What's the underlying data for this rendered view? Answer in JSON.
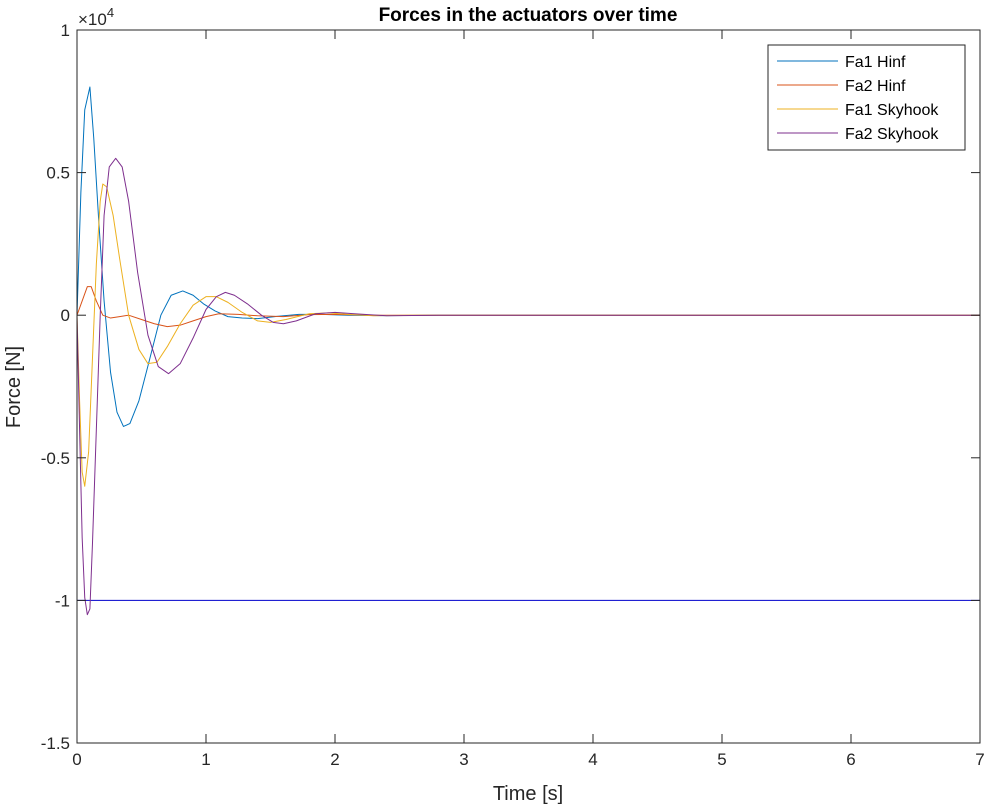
{
  "chart_data": {
    "type": "line",
    "title": "Forces in the actuators over time",
    "xlabel": "Time [s]",
    "ylabel": "Force [N]",
    "y_multiplier_prefix": "×10",
    "y_multiplier_exponent": "4",
    "xlim": [
      0,
      7
    ],
    "ylim": [
      -15000,
      10000
    ],
    "x_ticks": [
      0,
      1,
      2,
      3,
      4,
      5,
      6,
      7
    ],
    "x_tick_labels": [
      "0",
      "1",
      "2",
      "3",
      "4",
      "5",
      "6",
      "7"
    ],
    "y_ticks": [
      -15000,
      -10000,
      -5000,
      0,
      5000,
      10000
    ],
    "y_tick_labels": [
      "-1.5",
      "-1",
      "-0.5",
      "0",
      "0.5",
      "1"
    ],
    "grid": false,
    "legend_position": "top-right",
    "series": [
      {
        "name": "Fa1 Hinf",
        "color": "#0072BD",
        "points": [
          [
            0,
            0
          ],
          [
            0.03,
            4300
          ],
          [
            0.06,
            7200
          ],
          [
            0.1,
            8000
          ],
          [
            0.13,
            6200
          ],
          [
            0.17,
            3200
          ],
          [
            0.21,
            500
          ],
          [
            0.26,
            -2000
          ],
          [
            0.31,
            -3400
          ],
          [
            0.36,
            -3900
          ],
          [
            0.41,
            -3800
          ],
          [
            0.48,
            -3000
          ],
          [
            0.56,
            -1600
          ],
          [
            0.65,
            0
          ],
          [
            0.73,
            700
          ],
          [
            0.82,
            850
          ],
          [
            0.9,
            700
          ],
          [
            0.98,
            400
          ],
          [
            1.07,
            150
          ],
          [
            1.17,
            -50
          ],
          [
            1.28,
            -100
          ],
          [
            1.4,
            -120
          ],
          [
            1.55,
            -40
          ],
          [
            1.72,
            30
          ],
          [
            1.9,
            30
          ],
          [
            2.1,
            0
          ],
          [
            2.4,
            -15
          ],
          [
            2.8,
            0
          ],
          [
            3.5,
            0
          ],
          [
            7,
            0
          ]
        ]
      },
      {
        "name": "Fa2 Hinf",
        "color": "#D95319",
        "points": [
          [
            0,
            0
          ],
          [
            0.04,
            500
          ],
          [
            0.08,
            1000
          ],
          [
            0.11,
            1000
          ],
          [
            0.15,
            500
          ],
          [
            0.2,
            0
          ],
          [
            0.26,
            -100
          ],
          [
            0.33,
            -50
          ],
          [
            0.4,
            0
          ],
          [
            0.5,
            -150
          ],
          [
            0.6,
            -300
          ],
          [
            0.7,
            -400
          ],
          [
            0.8,
            -350
          ],
          [
            0.9,
            -200
          ],
          [
            1.0,
            -50
          ],
          [
            1.1,
            50
          ],
          [
            1.25,
            30
          ],
          [
            1.4,
            -20
          ],
          [
            1.6,
            -50
          ],
          [
            1.8,
            20
          ],
          [
            2.0,
            30
          ],
          [
            2.3,
            0
          ],
          [
            3,
            0
          ],
          [
            7,
            0
          ]
        ]
      },
      {
        "name": "Fa1 Skyhook",
        "color": "#EDB120",
        "points": [
          [
            0,
            0
          ],
          [
            0.02,
            -3000
          ],
          [
            0.04,
            -5500
          ],
          [
            0.06,
            -6000
          ],
          [
            0.09,
            -4800
          ],
          [
            0.12,
            -1500
          ],
          [
            0.15,
            1800
          ],
          [
            0.18,
            4000
          ],
          [
            0.2,
            4600
          ],
          [
            0.23,
            4500
          ],
          [
            0.28,
            3500
          ],
          [
            0.33,
            2000
          ],
          [
            0.4,
            0
          ],
          [
            0.48,
            -1200
          ],
          [
            0.55,
            -1700
          ],
          [
            0.62,
            -1650
          ],
          [
            0.7,
            -1100
          ],
          [
            0.8,
            -300
          ],
          [
            0.9,
            350
          ],
          [
            1.0,
            650
          ],
          [
            1.08,
            650
          ],
          [
            1.17,
            450
          ],
          [
            1.28,
            100
          ],
          [
            1.4,
            -200
          ],
          [
            1.5,
            -250
          ],
          [
            1.62,
            -150
          ],
          [
            1.8,
            50
          ],
          [
            1.95,
            80
          ],
          [
            2.1,
            30
          ],
          [
            2.3,
            -20
          ],
          [
            2.6,
            0
          ],
          [
            7,
            0
          ]
        ]
      },
      {
        "name": "Fa2 Skyhook",
        "color": "#7E2F8E",
        "points": [
          [
            0,
            0
          ],
          [
            0.02,
            -4000
          ],
          [
            0.04,
            -7800
          ],
          [
            0.06,
            -9900
          ],
          [
            0.08,
            -10500
          ],
          [
            0.1,
            -10300
          ],
          [
            0.12,
            -8000
          ],
          [
            0.15,
            -4000
          ],
          [
            0.18,
            0
          ],
          [
            0.21,
            3500
          ],
          [
            0.25,
            5200
          ],
          [
            0.3,
            5500
          ],
          [
            0.35,
            5200
          ],
          [
            0.4,
            4000
          ],
          [
            0.47,
            1500
          ],
          [
            0.55,
            -700
          ],
          [
            0.63,
            -1800
          ],
          [
            0.71,
            -2050
          ],
          [
            0.8,
            -1700
          ],
          [
            0.9,
            -800
          ],
          [
            1.0,
            200
          ],
          [
            1.08,
            650
          ],
          [
            1.15,
            800
          ],
          [
            1.22,
            700
          ],
          [
            1.32,
            400
          ],
          [
            1.43,
            0
          ],
          [
            1.52,
            -250
          ],
          [
            1.6,
            -300
          ],
          [
            1.7,
            -200
          ],
          [
            1.85,
            50
          ],
          [
            2.0,
            100
          ],
          [
            2.15,
            50
          ],
          [
            2.4,
            -20
          ],
          [
            2.8,
            0
          ],
          [
            7,
            0
          ]
        ]
      }
    ],
    "reference_lines": [
      {
        "y": 10000,
        "color": "#0000CC"
      },
      {
        "y": -10000,
        "color": "#0000CC"
      }
    ]
  }
}
